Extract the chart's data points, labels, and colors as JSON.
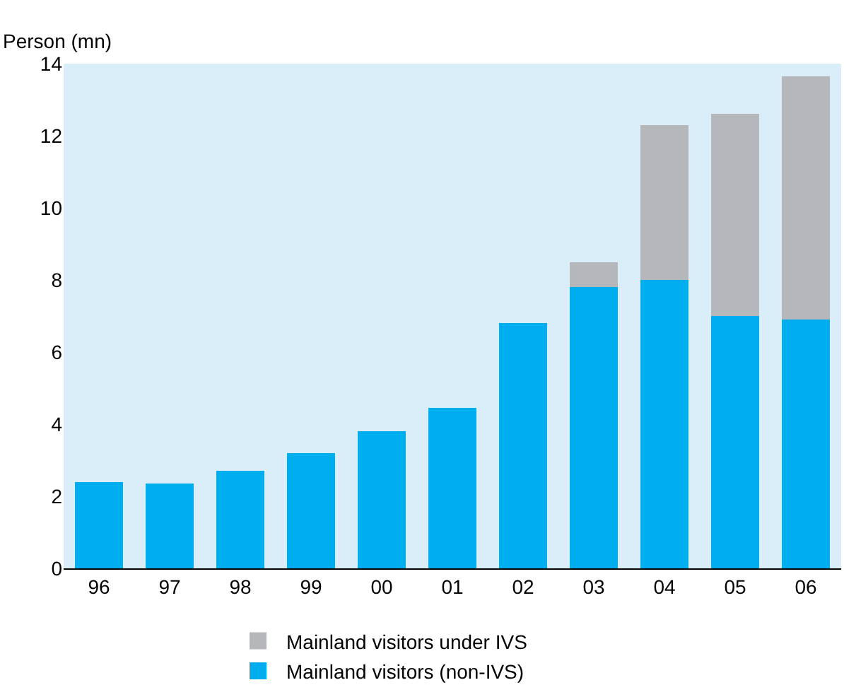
{
  "chart_data": {
    "type": "bar",
    "stacked": true,
    "ylabel": "Person (mn)",
    "categories": [
      "96",
      "97",
      "98",
      "99",
      "00",
      "01",
      "02",
      "03",
      "04",
      "05",
      "06"
    ],
    "series": [
      {
        "name": "Mainland visitors (non-IVS)",
        "color": "#00aeef",
        "values": [
          2.4,
          2.35,
          2.7,
          3.2,
          3.8,
          4.45,
          6.8,
          7.8,
          8.0,
          7.0,
          6.9
        ]
      },
      {
        "name": "Mainland visitors under IVS",
        "color": "#b5b7bb",
        "values": [
          null,
          null,
          null,
          null,
          null,
          null,
          null,
          0.7,
          4.3,
          5.6,
          6.75
        ]
      }
    ],
    "ylim": [
      0,
      14
    ],
    "yticks": [
      0,
      2,
      4,
      6,
      8,
      10,
      12,
      14
    ],
    "grid": false,
    "legend": "bottom"
  }
}
